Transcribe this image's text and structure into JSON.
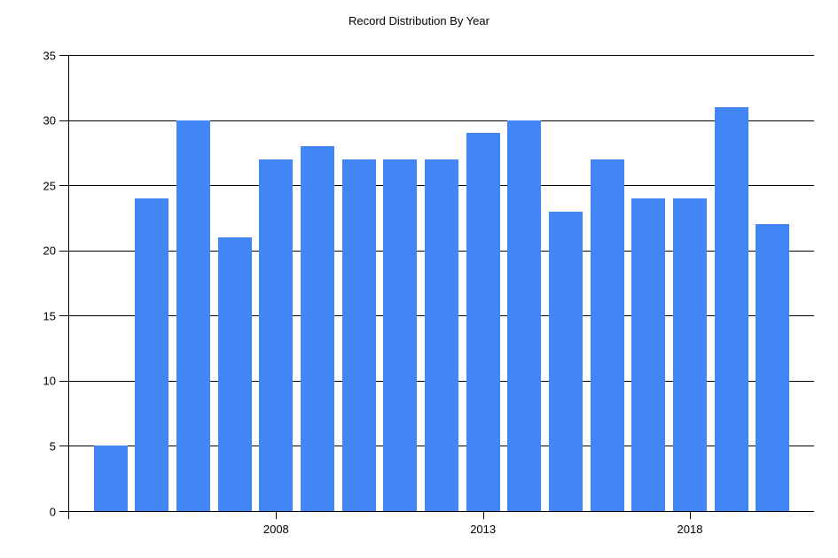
{
  "chart_data": {
    "type": "bar",
    "title": "Record Distribution By Year",
    "categories": [
      2004,
      2005,
      2006,
      2007,
      2008,
      2009,
      2010,
      2011,
      2012,
      2013,
      2014,
      2015,
      2016,
      2017,
      2018,
      2019,
      2020
    ],
    "values": [
      5,
      24,
      30,
      21,
      27,
      28,
      27,
      27,
      27,
      29,
      30,
      23,
      27,
      24,
      24,
      31,
      22
    ],
    "xlabel": "",
    "ylabel": "",
    "xlim": [
      2003,
      2021
    ],
    "ylim": [
      0,
      35
    ],
    "y_ticks": [
      0,
      5,
      10,
      15,
      20,
      25,
      30,
      35
    ],
    "x_ticks": [
      2008,
      2013,
      2018
    ],
    "grid": true,
    "legend_position": "none",
    "bar_color": "#4285F4",
    "axis_color": "#000000",
    "text_color": "#000000"
  }
}
